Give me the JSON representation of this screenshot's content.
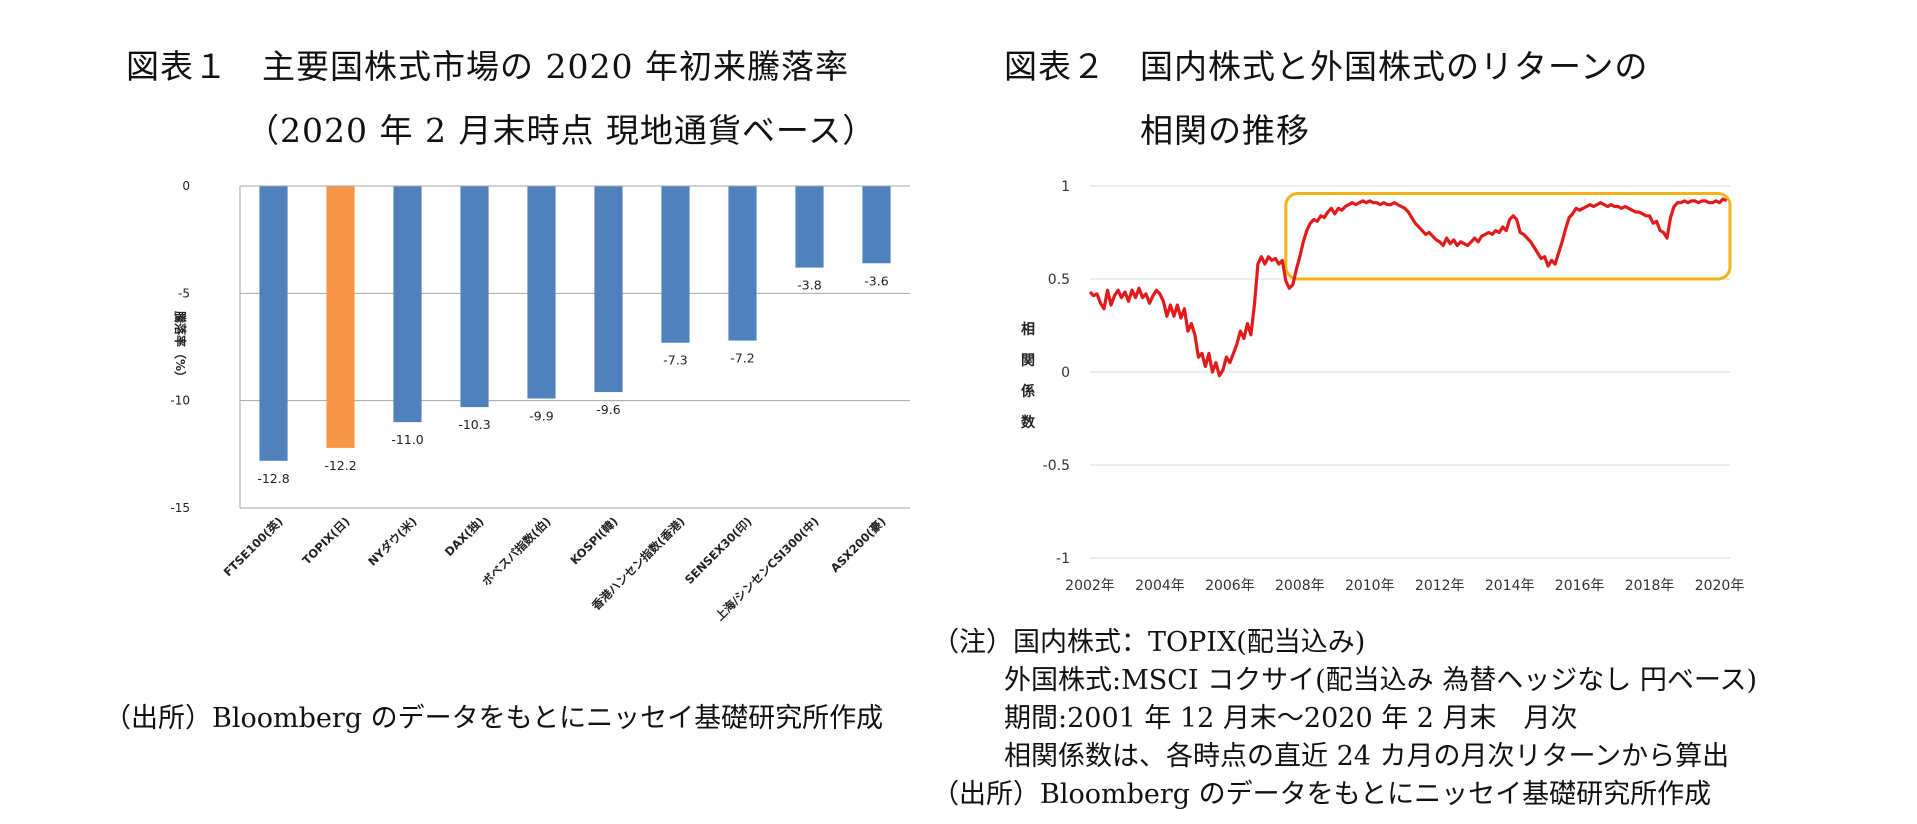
{
  "left_panel": {
    "title_line1": "図表１　主要国株式市場の 2020 年初来騰落率",
    "title_line2": "（2020 年 2 月末時点 現地通貨ベース）",
    "source": "（出所）Bloomberg のデータをもとにニッセイ基礎研究所作成"
  },
  "right_panel": {
    "title_line1": "図表２　国内株式と外国株式のリターンの",
    "title_line2": "相関の推移",
    "notes": [
      "（注）国内株式：TOPIX(配当込み)",
      "外国株式:MSCI コクサイ(配当込み 為替ヘッジなし 円ベース)",
      "期間:2001 年 12 月末～2020 年 2 月末　月次",
      "相関係数は、各時点の直近 24 カ月の月次リターンから算出",
      "（出所）Bloomberg のデータをもとにニッセイ基礎研究所作成"
    ]
  },
  "colors": {
    "bar": "#4F81BD",
    "highlight": "#F79646",
    "line": "#E31A1C",
    "box": "#F2B318"
  },
  "chart_data": [
    {
      "type": "bar",
      "title": "主要国株式市場の 2020 年初来騰落率",
      "ylabel": "騰落率（%）",
      "ylim": [
        -15,
        0
      ],
      "yticks": [
        0,
        -5,
        -10,
        -15
      ],
      "categories": [
        "FTSE100(英)",
        "TOPIX(日)",
        "NYダウ(米)",
        "DAX(独)",
        "ボベスパ指数(伯)",
        "KOSPI(韓)",
        "香港ハンセン指数(香港)",
        "SENSEX30(印)",
        "上海/シンセンCSI300(中)",
        "ASX200(豪)"
      ],
      "values": [
        -12.8,
        -12.2,
        -11.0,
        -10.3,
        -9.9,
        -9.6,
        -7.3,
        -7.2,
        -3.8,
        -3.6
      ],
      "value_labels": [
        "-12.8",
        "-12.2",
        "-11.0",
        "-10.3",
        "-9.9",
        "-9.6",
        "-7.3",
        "-7.2",
        "-3.8",
        "-3.6"
      ],
      "highlight": "TOPIX(日)"
    },
    {
      "type": "line",
      "title": "国内株式と外国株式のリターンの相関の推移",
      "ylabel": "相関係数",
      "ylim": [
        -1,
        1
      ],
      "yticks": [
        "1",
        "0.5",
        "0",
        "-0.5",
        "-1"
      ],
      "xlim": [
        2002,
        2020.3
      ],
      "xticks": [
        "2002年",
        "2004年",
        "2006年",
        "2008年",
        "2010年",
        "2012年",
        "2014年",
        "2016年",
        "2018年",
        "2020年"
      ],
      "series": [
        {
          "name": "相関係数",
          "points": [
            [
              2002.0,
              0.43
            ],
            [
              2002.1,
              0.41
            ],
            [
              2002.2,
              0.42
            ],
            [
              2002.3,
              0.37
            ],
            [
              2002.4,
              0.34
            ],
            [
              2002.5,
              0.44
            ],
            [
              2002.6,
              0.36
            ],
            [
              2002.7,
              0.41
            ],
            [
              2002.8,
              0.44
            ],
            [
              2002.9,
              0.4
            ],
            [
              2003.0,
              0.43
            ],
            [
              2003.1,
              0.38
            ],
            [
              2003.2,
              0.44
            ],
            [
              2003.3,
              0.4
            ],
            [
              2003.4,
              0.45
            ],
            [
              2003.5,
              0.4
            ],
            [
              2003.6,
              0.42
            ],
            [
              2003.7,
              0.37
            ],
            [
              2003.8,
              0.41
            ],
            [
              2003.9,
              0.44
            ],
            [
              2004.0,
              0.42
            ],
            [
              2004.1,
              0.38
            ],
            [
              2004.2,
              0.3
            ],
            [
              2004.3,
              0.36
            ],
            [
              2004.4,
              0.3
            ],
            [
              2004.5,
              0.36
            ],
            [
              2004.6,
              0.29
            ],
            [
              2004.7,
              0.34
            ],
            [
              2004.8,
              0.22
            ],
            [
              2004.9,
              0.26
            ],
            [
              2005.0,
              0.2
            ],
            [
              2005.1,
              0.08
            ],
            [
              2005.2,
              0.1
            ],
            [
              2005.3,
              0.03
            ],
            [
              2005.4,
              0.1
            ],
            [
              2005.5,
              0.0
            ],
            [
              2005.6,
              0.05
            ],
            [
              2005.7,
              -0.02
            ],
            [
              2005.8,
              0.01
            ],
            [
              2005.9,
              0.08
            ],
            [
              2006.0,
              0.05
            ],
            [
              2006.1,
              0.1
            ],
            [
              2006.2,
              0.15
            ],
            [
              2006.3,
              0.22
            ],
            [
              2006.4,
              0.18
            ],
            [
              2006.5,
              0.26
            ],
            [
              2006.6,
              0.2
            ],
            [
              2006.7,
              0.36
            ],
            [
              2006.8,
              0.58
            ],
            [
              2006.9,
              0.62
            ],
            [
              2007.0,
              0.58
            ],
            [
              2007.1,
              0.62
            ],
            [
              2007.2,
              0.6
            ],
            [
              2007.3,
              0.61
            ],
            [
              2007.4,
              0.58
            ],
            [
              2007.5,
              0.6
            ],
            [
              2007.6,
              0.49
            ],
            [
              2007.7,
              0.45
            ],
            [
              2007.8,
              0.47
            ],
            [
              2007.9,
              0.55
            ],
            [
              2008.0,
              0.62
            ],
            [
              2008.1,
              0.7
            ],
            [
              2008.2,
              0.76
            ],
            [
              2008.3,
              0.8
            ],
            [
              2008.4,
              0.82
            ],
            [
              2008.5,
              0.81
            ],
            [
              2008.6,
              0.84
            ],
            [
              2008.7,
              0.83
            ],
            [
              2008.8,
              0.86
            ],
            [
              2008.9,
              0.88
            ],
            [
              2009.0,
              0.85
            ],
            [
              2009.1,
              0.88
            ],
            [
              2009.2,
              0.87
            ],
            [
              2009.3,
              0.89
            ],
            [
              2009.4,
              0.9
            ],
            [
              2009.5,
              0.91
            ],
            [
              2009.6,
              0.9
            ],
            [
              2009.7,
              0.91
            ],
            [
              2009.8,
              0.92
            ],
            [
              2009.9,
              0.91
            ],
            [
              2010.0,
              0.92
            ],
            [
              2010.1,
              0.91
            ],
            [
              2010.2,
              0.91
            ],
            [
              2010.3,
              0.9
            ],
            [
              2010.4,
              0.91
            ],
            [
              2010.5,
              0.9
            ],
            [
              2010.6,
              0.9
            ],
            [
              2010.7,
              0.91
            ],
            [
              2010.8,
              0.9
            ],
            [
              2010.9,
              0.89
            ],
            [
              2011.0,
              0.88
            ],
            [
              2011.1,
              0.86
            ],
            [
              2011.2,
              0.83
            ],
            [
              2011.3,
              0.8
            ],
            [
              2011.4,
              0.78
            ],
            [
              2011.5,
              0.76
            ],
            [
              2011.6,
              0.74
            ],
            [
              2011.7,
              0.75
            ],
            [
              2011.8,
              0.73
            ],
            [
              2011.9,
              0.71
            ],
            [
              2012.0,
              0.7
            ],
            [
              2012.1,
              0.68
            ],
            [
              2012.2,
              0.72
            ],
            [
              2012.3,
              0.69
            ],
            [
              2012.4,
              0.71
            ],
            [
              2012.5,
              0.68
            ],
            [
              2012.6,
              0.7
            ],
            [
              2012.7,
              0.69
            ],
            [
              2012.8,
              0.68
            ],
            [
              2012.9,
              0.7
            ],
            [
              2013.0,
              0.72
            ],
            [
              2013.1,
              0.7
            ],
            [
              2013.2,
              0.73
            ],
            [
              2013.3,
              0.74
            ],
            [
              2013.4,
              0.75
            ],
            [
              2013.5,
              0.74
            ],
            [
              2013.6,
              0.76
            ],
            [
              2013.7,
              0.75
            ],
            [
              2013.8,
              0.78
            ],
            [
              2013.9,
              0.76
            ],
            [
              2014.0,
              0.82
            ],
            [
              2014.1,
              0.84
            ],
            [
              2014.2,
              0.82
            ],
            [
              2014.3,
              0.75
            ],
            [
              2014.4,
              0.74
            ],
            [
              2014.5,
              0.72
            ],
            [
              2014.6,
              0.7
            ],
            [
              2014.7,
              0.67
            ],
            [
              2014.8,
              0.64
            ],
            [
              2014.9,
              0.61
            ],
            [
              2015.0,
              0.62
            ],
            [
              2015.1,
              0.57
            ],
            [
              2015.2,
              0.6
            ],
            [
              2015.3,
              0.58
            ],
            [
              2015.4,
              0.64
            ],
            [
              2015.5,
              0.7
            ],
            [
              2015.6,
              0.77
            ],
            [
              2015.7,
              0.83
            ],
            [
              2015.8,
              0.85
            ],
            [
              2015.9,
              0.88
            ],
            [
              2016.0,
              0.87
            ],
            [
              2016.1,
              0.88
            ],
            [
              2016.2,
              0.89
            ],
            [
              2016.3,
              0.9
            ],
            [
              2016.4,
              0.89
            ],
            [
              2016.5,
              0.9
            ],
            [
              2016.6,
              0.91
            ],
            [
              2016.7,
              0.9
            ],
            [
              2016.8,
              0.89
            ],
            [
              2016.9,
              0.9
            ],
            [
              2017.0,
              0.89
            ],
            [
              2017.1,
              0.89
            ],
            [
              2017.2,
              0.88
            ],
            [
              2017.3,
              0.89
            ],
            [
              2017.4,
              0.88
            ],
            [
              2017.5,
              0.87
            ],
            [
              2017.6,
              0.86
            ],
            [
              2017.7,
              0.86
            ],
            [
              2017.8,
              0.85
            ],
            [
              2017.9,
              0.84
            ],
            [
              2018.0,
              0.84
            ],
            [
              2018.1,
              0.8
            ],
            [
              2018.2,
              0.81
            ],
            [
              2018.3,
              0.76
            ],
            [
              2018.4,
              0.75
            ],
            [
              2018.5,
              0.72
            ],
            [
              2018.6,
              0.83
            ],
            [
              2018.7,
              0.89
            ],
            [
              2018.8,
              0.91
            ],
            [
              2018.9,
              0.91
            ],
            [
              2019.0,
              0.92
            ],
            [
              2019.1,
              0.91
            ],
            [
              2019.2,
              0.92
            ],
            [
              2019.3,
              0.92
            ],
            [
              2019.4,
              0.91
            ],
            [
              2019.5,
              0.92
            ],
            [
              2019.6,
              0.92
            ],
            [
              2019.7,
              0.91
            ],
            [
              2019.8,
              0.91
            ],
            [
              2019.9,
              0.92
            ],
            [
              2020.0,
              0.91
            ],
            [
              2020.1,
              0.93
            ],
            [
              2020.2,
              0.92
            ]
          ]
        }
      ],
      "annotations": [
        {
          "shape": "rounded-rectangle",
          "x_range": [
            2007.6,
            2020.3
          ],
          "y_range": [
            0.5,
            0.96
          ]
        }
      ]
    }
  ]
}
